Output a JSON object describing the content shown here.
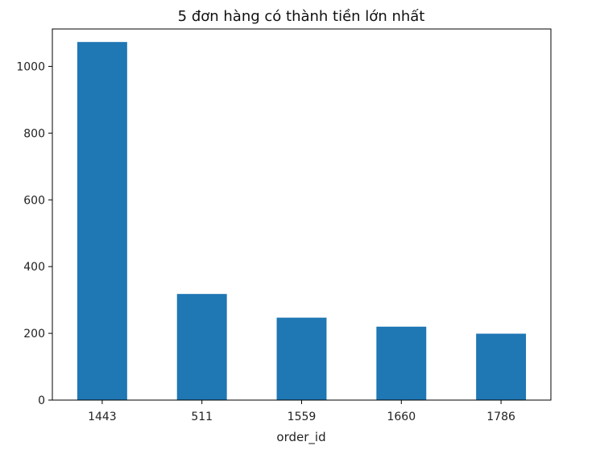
{
  "chart_data": {
    "type": "bar",
    "title": "5 đơn hàng có thành tiền lớn nhất",
    "xlabel": "order_id",
    "ylabel": "",
    "categories": [
      "1443",
      "511",
      "1559",
      "1660",
      "1786"
    ],
    "values": [
      1073,
      318,
      247,
      220,
      199
    ],
    "ylim": [
      0,
      1112
    ],
    "yticks": [
      0,
      200,
      400,
      600,
      800,
      1000
    ],
    "grid": false,
    "legend": "none",
    "bar_color": "#1f77b4"
  }
}
